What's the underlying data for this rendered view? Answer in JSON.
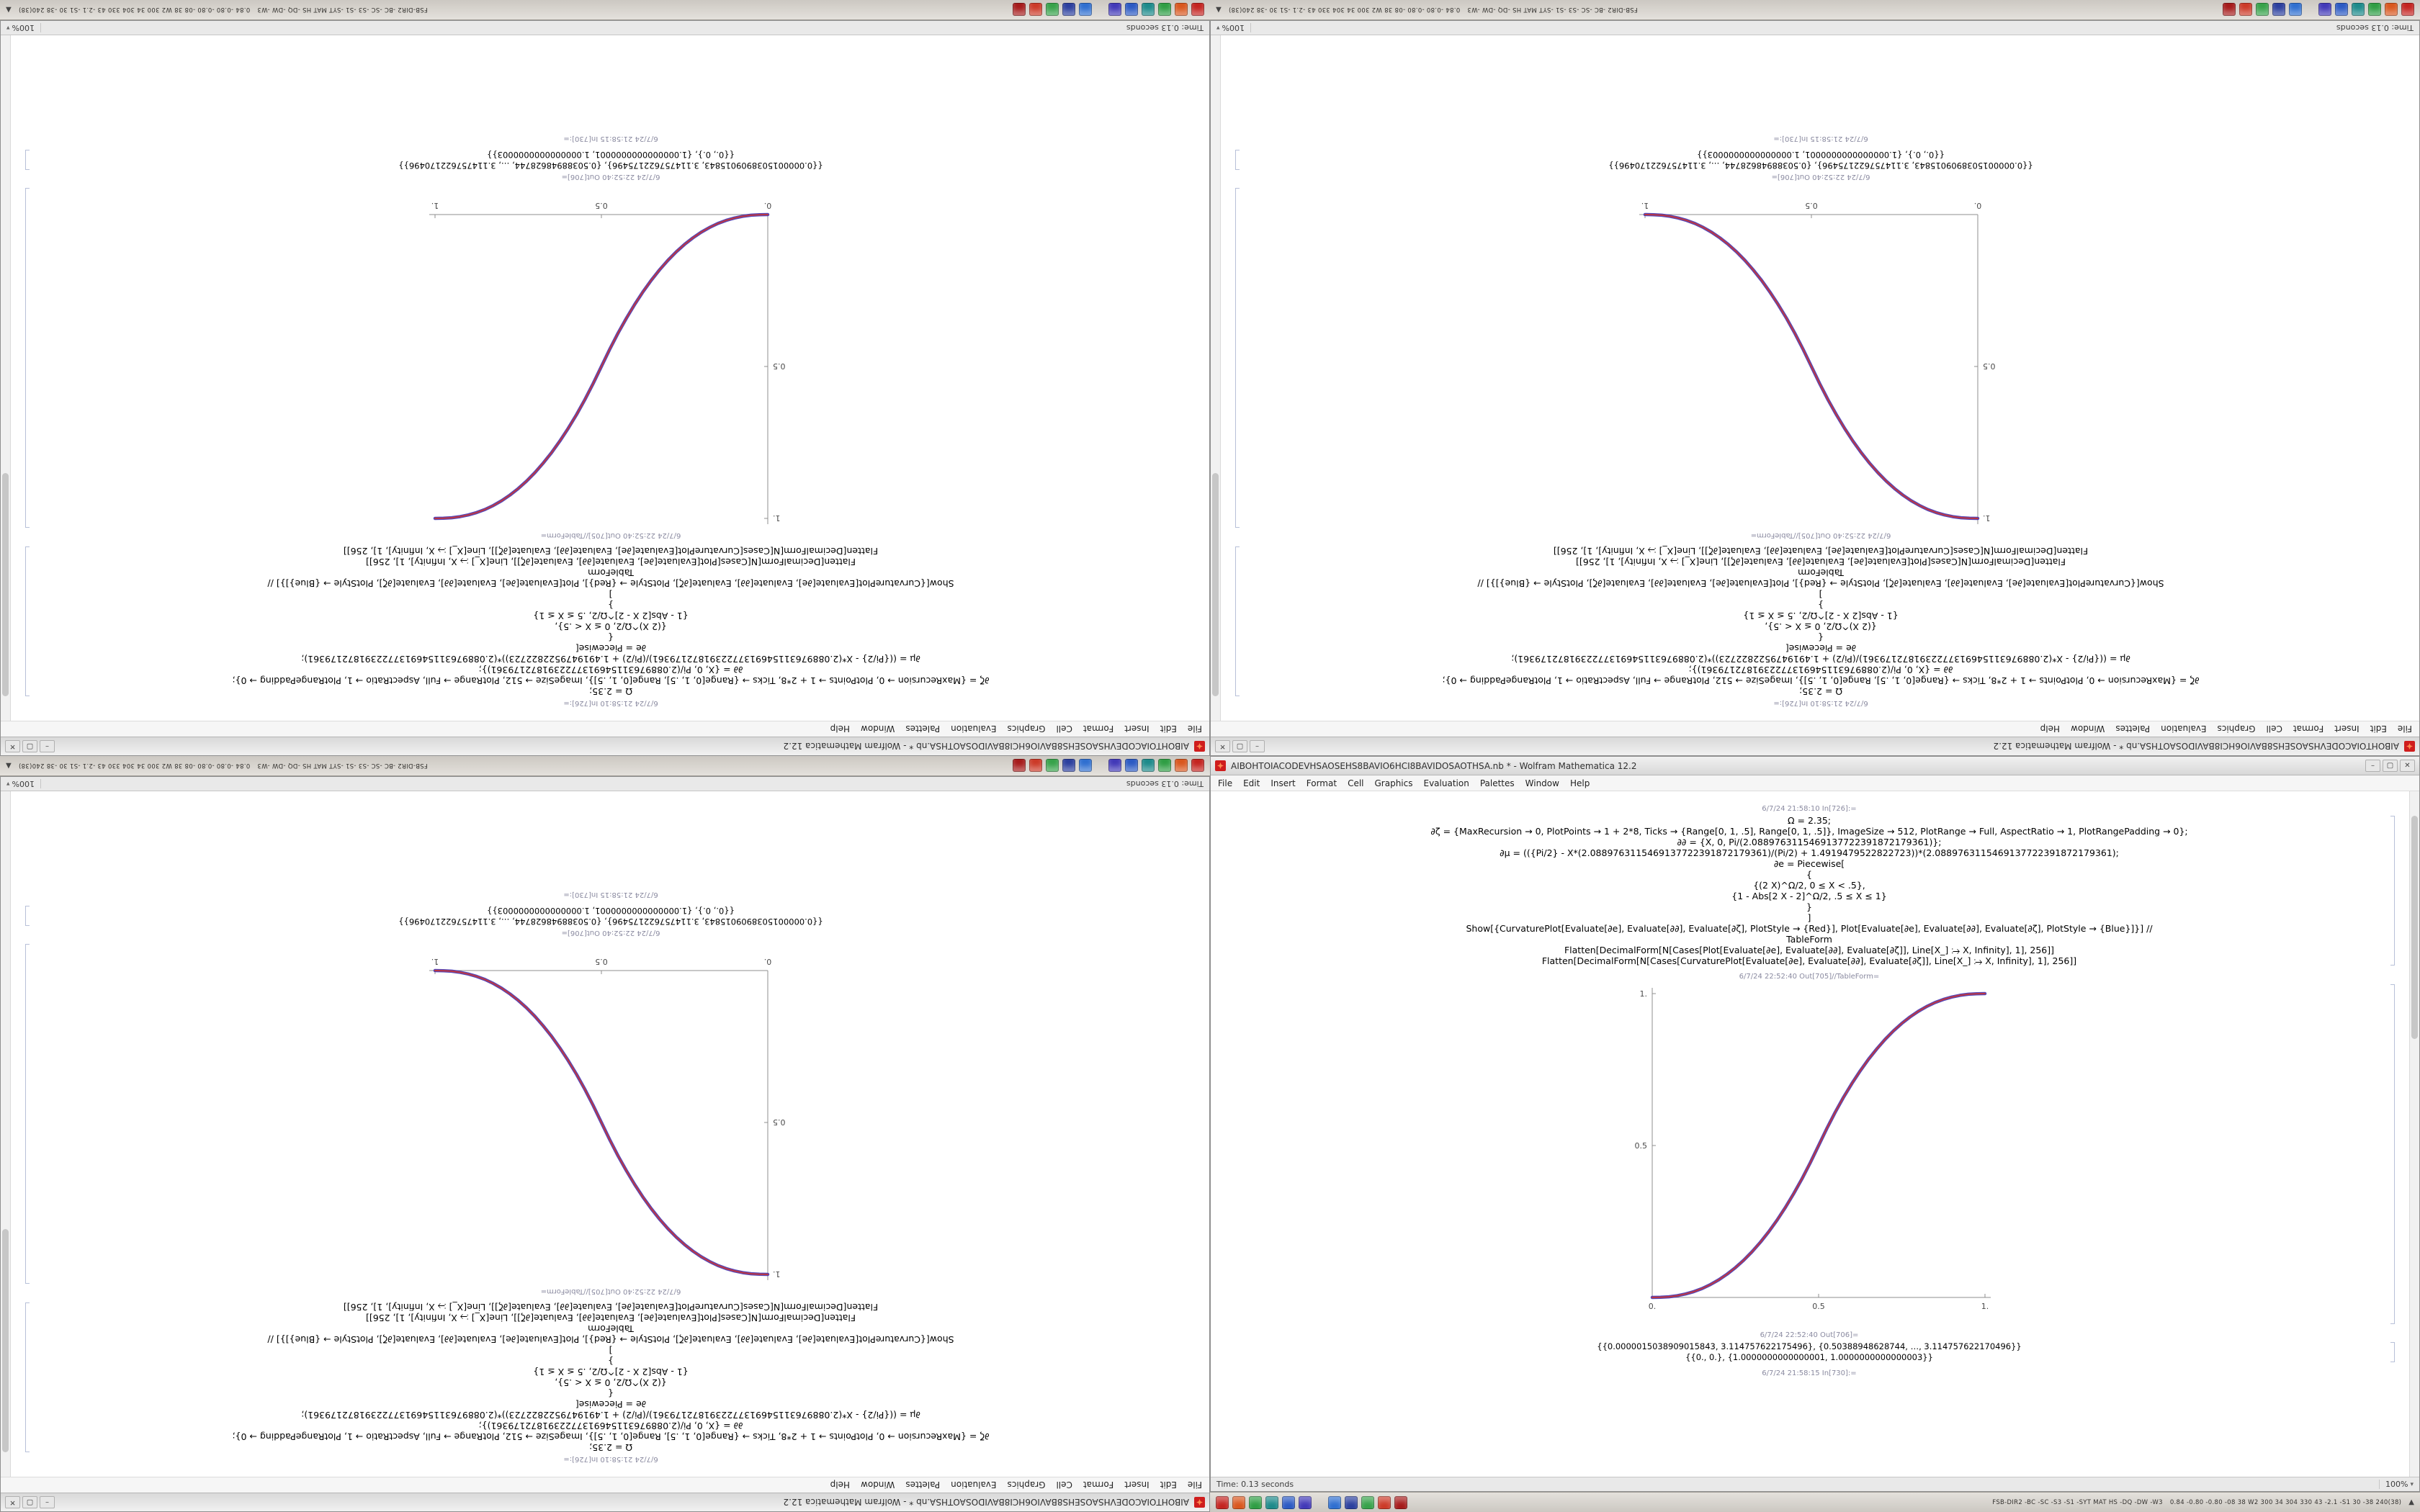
{
  "desktop": {
    "taskbar": {
      "icons_group1": [
        {
          "name": "taskbar-app-icon-red",
          "color": "#c42420"
        },
        {
          "name": "taskbar-app-icon-orange",
          "color": "#d9571e"
        },
        {
          "name": "taskbar-app-icon-green",
          "color": "#2f9e44"
        },
        {
          "name": "taskbar-app-icon-teal",
          "color": "#1d8a8a"
        },
        {
          "name": "taskbar-app-icon-blue",
          "color": "#2b59c3"
        },
        {
          "name": "taskbar-app-icon-indigo",
          "color": "#4239b8"
        }
      ],
      "icons_group2": [
        {
          "name": "taskbar-app-icon-lightblue",
          "color": "#2f6fd0"
        },
        {
          "name": "taskbar-app-icon-navy",
          "color": "#2b3f9e"
        },
        {
          "name": "taskbar-app-icon-green2",
          "color": "#37a24a"
        },
        {
          "name": "taskbar-app-icon-red2",
          "color": "#cc3a28"
        },
        {
          "name": "taskbar-app-icon-darkred",
          "color": "#a61b1b"
        }
      ],
      "tray_text1": "FSB-DIR2 -BC -SC -S3 -S1 -SYT MAT HS -DQ -DW -W3",
      "tray_text2": "0.84 -0.80 -0.80 -08 38 W2 300 34 304 330 43 -2.1 -S1 30 -38 240(38)",
      "expander": "▲"
    }
  },
  "window": {
    "title": "AIBOHTOIACODEVHSAOSEHS8BAVIO6HCI8BAVIDOSAOTHSA.nb * - Wolfram Mathematica 12.2",
    "buttons": {
      "minimize": "–",
      "maximize": "▢",
      "close": "✕"
    },
    "menu": [
      "File",
      "Edit",
      "Insert",
      "Format",
      "Cell",
      "Graphics",
      "Evaluation",
      "Palettes",
      "Window",
      "Help"
    ],
    "cells": {
      "in_label_top": "6/7/24 21:58:10 In[726]:=",
      "code_lines": [
        "Ω = 2.35;",
        "∂ζ = {MaxRecursion → 0, PlotPoints → 1 + 2*8, Ticks → {Range[0, 1, .5], Range[0, 1, .5]}, ImageSize → 512, PlotRange → Full, AspectRatio → 1, PlotRangePadding → 0};",
        "∂∂ = {X, 0, Pi/(2.0889763115469137722391872179361)};",
        "∂μ = (({Pi/2} - X*(2.0889763115469137722391872179361)/(Pi/2) + 1.4919479522822723))*(2.0889763115469137722391872179361);",
        "∂e = Piecewise[",
        "{",
        "{(2 X)^Ω/2, 0 ≤ X < .5},",
        "{1 - Abs[2 X - 2]^Ω/2, .5 ≤ X ≤ 1}",
        "}",
        "]",
        "Show[{CurvaturePlot[Evaluate[∂e], Evaluate[∂∂], Evaluate[∂ζ], PlotStyle → {Red}], Plot[Evaluate[∂e], Evaluate[∂∂], Evaluate[∂ζ], PlotStyle → {Blue}]}] //",
        "TableForm",
        "Flatten[DecimalForm[N[Cases[Plot[Evaluate[∂e], Evaluate[∂∂], Evaluate[∂ζ]], Line[X_] ⧴ X, Infinity], 1], 256]]",
        "Flatten[DecimalForm[N[Cases[CurvaturePlot[Evaluate[∂e], Evaluate[∂∂], Evaluate[∂ζ]], Line[X_] ⧴ X, Infinity], 1], 256]]"
      ],
      "out_plot_label": "6/7/24 22:52:40 Out[705]//TableForm=",
      "out_numbers_label": "6/7/24 22:52:40 Out[706]=",
      "out_numbers": [
        "{{0.0000015038909015843, 3.114757622175496}, {0.50388948628744, …, 3.114757622170496}}",
        "{{0., 0.}, {1.0000000000000001, 1.0000000000000003}}"
      ],
      "in_label_bottom": "6/7/24 21:58:15 In[730]:="
    },
    "status_left": "Time: 0.13 seconds",
    "zoom": "100%"
  },
  "tiles": [
    {
      "name": "top-left",
      "rotated": true,
      "series": "rise"
    },
    {
      "name": "top-right",
      "rotated": true,
      "series": "fall"
    },
    {
      "name": "bottom-left",
      "rotated": true,
      "series": "fall"
    },
    {
      "name": "bottom-right",
      "rotated": false,
      "series": "rise"
    }
  ],
  "chart_data": {
    "type": "line",
    "title": "",
    "xlabel": "",
    "ylabel": "",
    "xlim": [
      0,
      1
    ],
    "ylim": [
      0,
      1
    ],
    "grid": false,
    "legend": "none",
    "xticks": [
      {
        "v": 0,
        "label": "0."
      },
      {
        "v": 0.5,
        "label": "0.5"
      },
      {
        "v": 1,
        "label": "1."
      }
    ],
    "yticks": [
      {
        "v": 0.5,
        "label": "0.5"
      },
      {
        "v": 1,
        "label": "1."
      }
    ],
    "axis_color": "#8f8f8f",
    "label_color": "#4a4a4a",
    "colors": {
      "red": "#d0342c",
      "blue": "#4433b0"
    },
    "x": [
      0,
      0.025,
      0.05,
      0.075,
      0.1,
      0.125,
      0.15,
      0.175,
      0.2,
      0.225,
      0.25,
      0.275,
      0.3,
      0.325,
      0.35,
      0.375,
      0.4,
      0.425,
      0.45,
      0.475,
      0.5,
      0.525,
      0.55,
      0.575,
      0.6,
      0.625,
      0.65,
      0.675,
      0.7,
      0.725,
      0.75,
      0.775,
      0.8,
      0.825,
      0.85,
      0.875,
      0.9,
      0.925,
      0.95,
      0.975,
      1
    ],
    "series": [
      {
        "name": "rise",
        "values": [
          0,
          0.0004,
          0.0022,
          0.0058,
          0.0114,
          0.0192,
          0.0295,
          0.0424,
          0.058,
          0.0766,
          0.0981,
          0.1227,
          0.1505,
          0.1817,
          0.2162,
          0.2543,
          0.296,
          0.3413,
          0.3904,
          0.4432,
          0.5,
          0.5568,
          0.6096,
          0.6587,
          0.704,
          0.7457,
          0.7838,
          0.8183,
          0.8495,
          0.8773,
          0.9019,
          0.9234,
          0.942,
          0.9576,
          0.9705,
          0.9808,
          0.9886,
          0.9942,
          0.9978,
          0.9996,
          1
        ]
      },
      {
        "name": "fall",
        "values": [
          1,
          0.9996,
          0.9978,
          0.9942,
          0.9886,
          0.9808,
          0.9705,
          0.9576,
          0.942,
          0.9234,
          0.9019,
          0.8773,
          0.8495,
          0.8183,
          0.7838,
          0.7457,
          0.704,
          0.6587,
          0.6096,
          0.5568,
          0.5,
          0.4432,
          0.3904,
          0.3413,
          0.296,
          0.2543,
          0.2162,
          0.1817,
          0.1505,
          0.1227,
          0.0981,
          0.0766,
          0.058,
          0.0424,
          0.0295,
          0.0192,
          0.0114,
          0.0058,
          0.0022,
          0.0004,
          0
        ]
      }
    ]
  }
}
